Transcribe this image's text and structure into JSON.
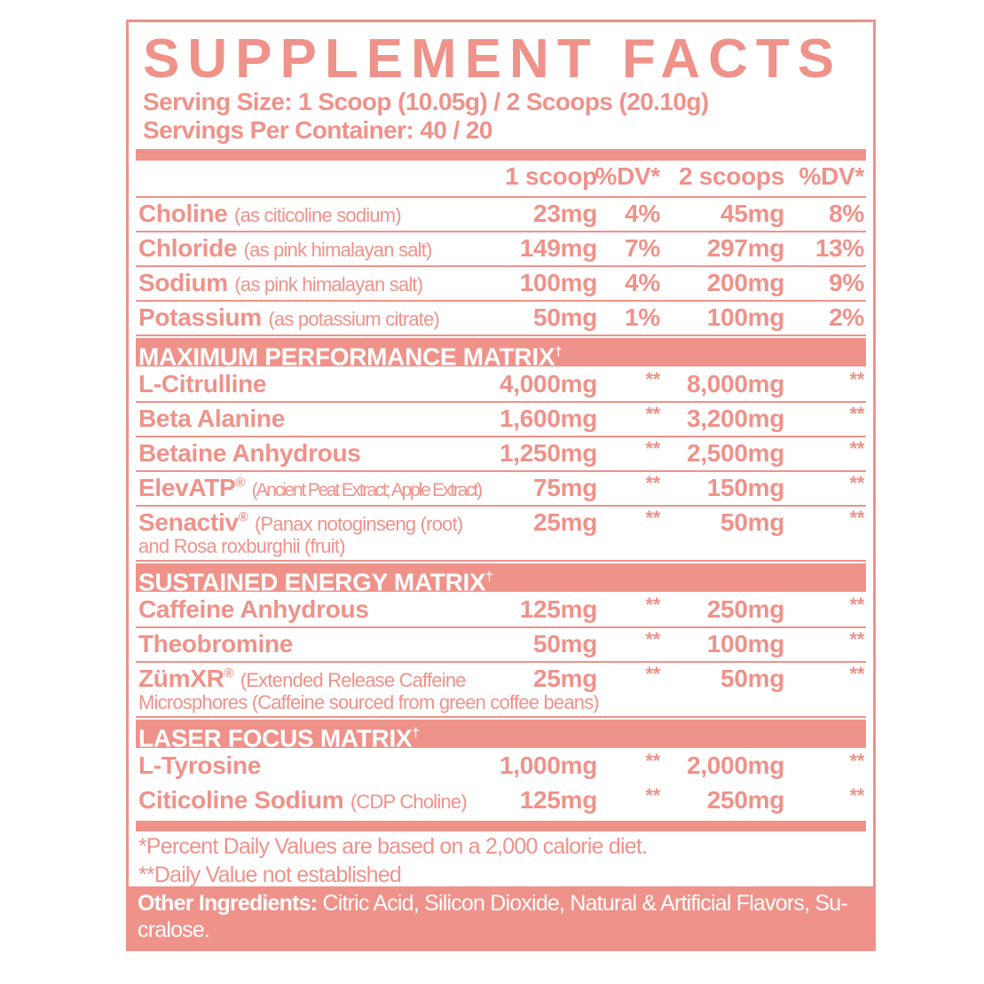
{
  "title": "SUPPLEMENT FACTS",
  "serving_size": "Serving Size: 1 Scoop (10.05g) / 2 Scoops (20.10g)",
  "servings_per_container": "Servings Per Container: 40 / 20",
  "color": "#ef928a",
  "header": {
    "amount1": "1 scoop",
    "dv1": "%DV*",
    "amount2": "2 scoops",
    "dv2": "%DV*"
  },
  "nutrients": [
    {
      "name": "Choline",
      "note": "(as citicoline sodium)",
      "amount1": "23mg",
      "dv1": "4%",
      "amount2": "45mg",
      "dv2": "8%"
    },
    {
      "name": "Chloride",
      "note": "(as pink himalayan salt)",
      "amount1": "149mg",
      "dv1": "7%",
      "amount2": "297mg",
      "dv2": "13%"
    },
    {
      "name": "Sodium",
      "note": "(as pink himalayan salt)",
      "amount1": "100mg",
      "dv1": "4%",
      "amount2": "200mg",
      "dv2": "9%"
    },
    {
      "name": "Potassium",
      "note": "(as potassium citrate)",
      "amount1": "50mg",
      "dv1": "1%",
      "amount2": "100mg",
      "dv2": "2%"
    }
  ],
  "sections": [
    {
      "title": "MAXIMUM PERFORMANCE MATRIX",
      "mark": "†",
      "items": [
        {
          "name": "L-Citrulline",
          "amount1": "4,000mg",
          "dv1": "**",
          "amount2": "8,000mg",
          "dv2": "**"
        },
        {
          "name": "Beta Alanine",
          "amount1": "1,600mg",
          "dv1": "**",
          "amount2": "3,200mg",
          "dv2": "**"
        },
        {
          "name": "Betaine Anhydrous",
          "amount1": "1,250mg",
          "dv1": "**",
          "amount2": "2,500mg",
          "dv2": "**"
        },
        {
          "name": "ElevATP",
          "reg": "®",
          "note": "(Ancient Peat Extract; Apple Extract)",
          "cond": true,
          "amount1": "75mg",
          "dv1": "**",
          "amount2": "150mg",
          "dv2": "**"
        },
        {
          "name": "Senactiv",
          "reg": "®",
          "note": "(Panax notoginseng (root)",
          "cont": "and Rosa roxburghii (fruit)",
          "amount1": "25mg",
          "dv1": "**",
          "amount2": "50mg",
          "dv2": "**"
        }
      ]
    },
    {
      "title": "SUSTAINED ENERGY MATRIX",
      "mark": "†",
      "items": [
        {
          "name": "Caffeine Anhydrous",
          "amount1": "125mg",
          "dv1": "**",
          "amount2": "250mg",
          "dv2": "**"
        },
        {
          "name": "Theobromine",
          "amount1": "50mg",
          "dv1": "**",
          "amount2": "100mg",
          "dv2": "**"
        },
        {
          "name": "ZümXR",
          "reg": "®",
          "note": "(Extended Release Caffeine",
          "cont": "Microsphores (Caffeine sourced from green coffee beans)",
          "amount1": "25mg",
          "dv1": "**",
          "amount2": "50mg",
          "dv2": "**"
        }
      ]
    },
    {
      "title": "LASER FOCUS MATRIX",
      "mark": "†",
      "items": [
        {
          "name": "L-Tyrosine",
          "amount1": "1,000mg",
          "dv1": "**",
          "amount2": "2,000mg",
          "dv2": "**"
        },
        {
          "name": "Citicoline Sodium",
          "note": "(CDP Choline)",
          "amount1": "125mg",
          "dv1": "**",
          "amount2": "250mg",
          "dv2": "**"
        }
      ]
    }
  ],
  "footnotes": [
    "*Percent Daily Values are based on a 2,000 calorie diet.",
    "**Daily Value not established"
  ],
  "other_ingredients": {
    "label": "Other Ingredients:",
    "text": " Citric Acid, Silicon Dioxide, Natural & Artificial Flavors, Su-cralose."
  }
}
